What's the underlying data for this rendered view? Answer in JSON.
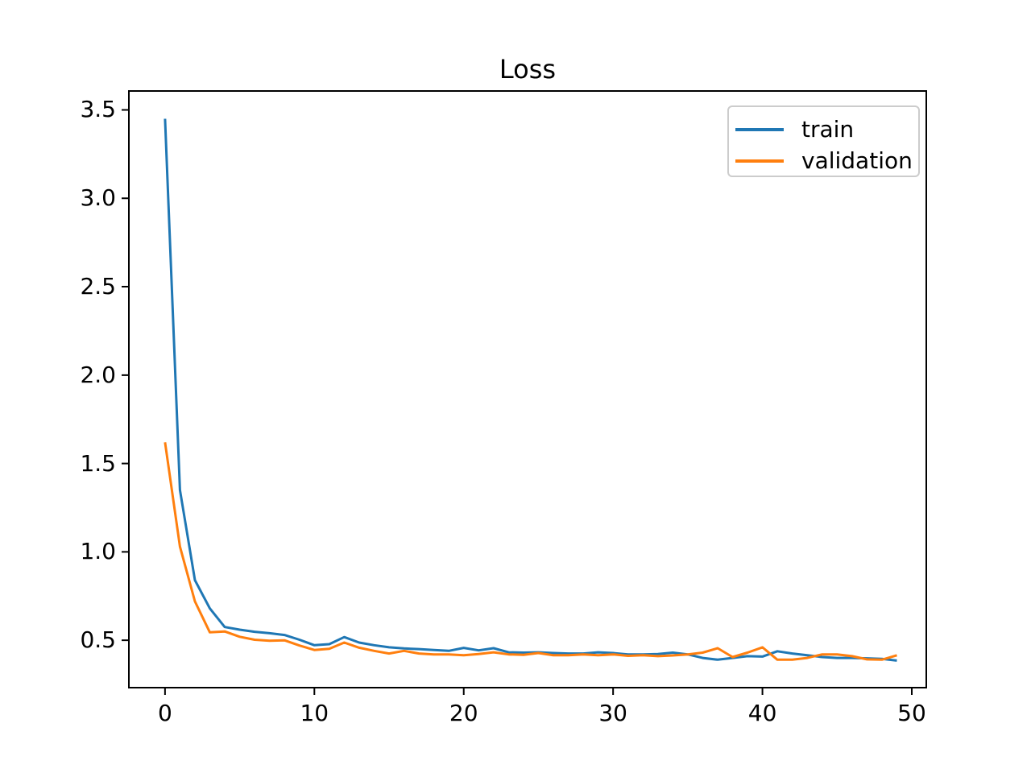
{
  "figure": {
    "title": "Loss",
    "background": "#ffffff"
  },
  "axes": {
    "frame_color": "#000000",
    "tick_color": "#000000",
    "x_tick_labels": [
      "0",
      "10",
      "20",
      "30",
      "40",
      "50"
    ],
    "y_tick_labels": [
      "0.5",
      "1.0",
      "1.5",
      "2.0",
      "2.5",
      "3.0",
      "3.5"
    ]
  },
  "legend": {
    "position": "upper right",
    "border_color": "#cccccc",
    "entries": [
      {
        "label": "train",
        "color": "#1f77b4"
      },
      {
        "label": "validation",
        "color": "#ff7f0e"
      }
    ]
  },
  "chart_data": {
    "type": "line",
    "title": "Loss",
    "xlabel": "",
    "ylabel": "",
    "grid": false,
    "legend_position": "upper right",
    "x_ticks": [
      0,
      10,
      20,
      30,
      40,
      50
    ],
    "y_ticks": [
      0.5,
      1.0,
      1.5,
      2.0,
      2.5,
      3.0,
      3.5
    ],
    "xlim": [
      -2.42,
      50.97
    ],
    "ylim": [
      0.232,
      3.607
    ],
    "x": [
      0,
      1,
      2,
      3,
      4,
      5,
      6,
      7,
      8,
      9,
      10,
      11,
      12,
      13,
      14,
      15,
      16,
      17,
      18,
      19,
      20,
      21,
      22,
      23,
      24,
      25,
      26,
      27,
      28,
      29,
      30,
      31,
      32,
      33,
      34,
      35,
      36,
      37,
      38,
      39,
      40,
      41,
      42,
      43,
      44,
      45,
      46,
      47,
      48,
      49
    ],
    "series": [
      {
        "name": "train",
        "color": "#1f77b4",
        "values": [
          3.45,
          1.35,
          0.84,
          0.68,
          0.575,
          0.56,
          0.548,
          0.54,
          0.53,
          0.503,
          0.472,
          0.478,
          0.518,
          0.487,
          0.472,
          0.46,
          0.454,
          0.45,
          0.445,
          0.44,
          0.457,
          0.443,
          0.455,
          0.432,
          0.43,
          0.432,
          0.428,
          0.425,
          0.425,
          0.432,
          0.428,
          0.42,
          0.42,
          0.422,
          0.43,
          0.42,
          0.4,
          0.39,
          0.4,
          0.41,
          0.408,
          0.438,
          0.425,
          0.415,
          0.405,
          0.4,
          0.4,
          0.398,
          0.395,
          0.385
        ]
      },
      {
        "name": "validation",
        "color": "#ff7f0e",
        "values": [
          1.62,
          1.03,
          0.72,
          0.545,
          0.55,
          0.52,
          0.503,
          0.497,
          0.5,
          0.47,
          0.445,
          0.452,
          0.487,
          0.458,
          0.44,
          0.425,
          0.44,
          0.425,
          0.42,
          0.42,
          0.415,
          0.422,
          0.432,
          0.42,
          0.418,
          0.428,
          0.415,
          0.415,
          0.42,
          0.415,
          0.42,
          0.412,
          0.415,
          0.41,
          0.414,
          0.42,
          0.43,
          0.455,
          0.405,
          0.43,
          0.46,
          0.39,
          0.39,
          0.4,
          0.42,
          0.42,
          0.41,
          0.392,
          0.39,
          0.415
        ]
      }
    ]
  }
}
